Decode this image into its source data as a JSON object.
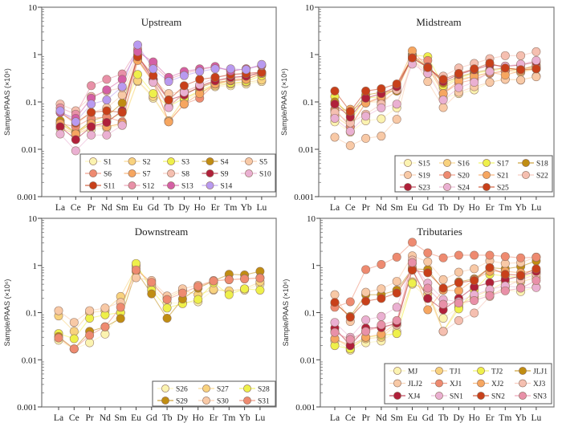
{
  "chart_data": [
    {
      "type": "line",
      "title": "Upstream",
      "ylabel": "Sample/PAAS (×10⁶)",
      "xlabel": "",
      "yscale": "log",
      "ylim": [
        0.001,
        10
      ],
      "yticks": [
        "10",
        "1",
        "0.1",
        "0.01",
        "0.001"
      ],
      "categories": [
        "La",
        "Ce",
        "Pr",
        "Nd",
        "Sm",
        "Eu",
        "Gd",
        "Tb",
        "Dy",
        "Ho",
        "Er",
        "Tm",
        "Yb",
        "Lu"
      ],
      "legend_position": "bottom-right",
      "legend_columns": 5,
      "series": [
        {
          "name": "S1",
          "color": "#fbf3b0",
          "values": [
            0.027,
            0.022,
            0.026,
            0.028,
            0.033,
            0.27,
            0.12,
            0.04,
            0.11,
            0.15,
            0.21,
            0.22,
            0.24,
            0.27
          ]
        },
        {
          "name": "S2",
          "color": "#f8d27e",
          "values": [
            0.03,
            0.02,
            0.03,
            0.03,
            0.035,
            0.28,
            0.13,
            0.04,
            0.12,
            0.16,
            0.22,
            0.24,
            0.26,
            0.29
          ]
        },
        {
          "name": "S3",
          "color": "#eef04a",
          "values": [
            0.035,
            0.023,
            0.035,
            0.04,
            0.06,
            0.38,
            0.15,
            0.08,
            0.12,
            0.17,
            0.24,
            0.25,
            0.27,
            0.36
          ]
        },
        {
          "name": "S4",
          "color": "#c08d12",
          "values": [
            0.04,
            0.022,
            0.04,
            0.05,
            0.095,
            0.8,
            0.27,
            0.08,
            0.15,
            0.2,
            0.26,
            0.28,
            0.3,
            0.4
          ]
        },
        {
          "name": "S5",
          "color": "#f8c9a6",
          "values": [
            0.06,
            0.033,
            0.06,
            0.075,
            0.14,
            0.9,
            0.3,
            0.15,
            0.17,
            0.22,
            0.28,
            0.3,
            0.33,
            0.42
          ]
        },
        {
          "name": "S6",
          "color": "#ee8a70",
          "values": [
            0.035,
            0.03,
            0.045,
            0.048,
            0.038,
            0.8,
            0.28,
            0.038,
            0.09,
            0.12,
            0.24,
            0.28,
            0.3,
            0.4
          ]
        },
        {
          "name": "S7",
          "color": "#f6a660",
          "values": [
            0.035,
            0.021,
            0.035,
            0.03,
            0.035,
            0.75,
            0.26,
            0.038,
            0.09,
            0.15,
            0.24,
            0.29,
            0.3,
            0.4
          ]
        },
        {
          "name": "S8",
          "color": "#f5bfb0",
          "values": [
            0.09,
            0.065,
            0.13,
            0.17,
            0.2,
            1.0,
            0.3,
            0.08,
            0.16,
            0.22,
            0.28,
            0.32,
            0.35,
            0.42
          ]
        },
        {
          "name": "S9",
          "color": "#b0203a",
          "values": [
            0.03,
            0.016,
            0.03,
            0.037,
            0.065,
            0.95,
            0.3,
            0.11,
            0.14,
            0.21,
            0.28,
            0.33,
            0.35,
            0.42
          ]
        },
        {
          "name": "S10",
          "color": "#eab0d2",
          "values": [
            0.021,
            0.0093,
            0.02,
            0.02,
            0.032,
            0.95,
            0.26,
            0.076,
            0.16,
            0.23,
            0.33,
            0.37,
            0.4,
            0.42
          ]
        },
        {
          "name": "S11",
          "color": "#c8401a",
          "values": [
            0.06,
            0.036,
            0.06,
            0.065,
            0.06,
            0.9,
            0.36,
            0.11,
            0.22,
            0.3,
            0.33,
            0.38,
            0.4,
            0.42
          ]
        },
        {
          "name": "S12",
          "color": "#e890a8",
          "values": [
            0.075,
            0.055,
            0.22,
            0.3,
            0.39,
            1.3,
            0.6,
            0.3,
            0.4,
            0.48,
            0.55,
            0.45,
            0.5,
            0.58
          ]
        },
        {
          "name": "S13",
          "color": "#d45fa5",
          "values": [
            0.06,
            0.045,
            0.12,
            0.18,
            0.3,
            1.15,
            0.7,
            0.33,
            0.44,
            0.5,
            0.56,
            0.45,
            0.5,
            0.6
          ]
        },
        {
          "name": "S14",
          "color": "#b89af0",
          "values": [
            0.065,
            0.038,
            0.09,
            0.11,
            0.21,
            1.6,
            0.5,
            0.27,
            0.36,
            0.44,
            0.5,
            0.5,
            0.48,
            0.62
          ]
        }
      ]
    },
    {
      "type": "line",
      "title": "Midstream",
      "ylabel": "Sample/PAAS (×10⁶)",
      "xlabel": "",
      "yscale": "log",
      "ylim": [
        0.001,
        10
      ],
      "yticks": [
        "10",
        "1",
        "0.1",
        "0.01",
        "0.001"
      ],
      "categories": [
        "La",
        "Ce",
        "Pr",
        "Nd",
        "Sm",
        "Eu",
        "Gd",
        "Tb",
        "Dy",
        "Ho",
        "Er",
        "Tm",
        "Yb",
        "Lu"
      ],
      "legend_position": "bottom-right",
      "legend_columns": 4,
      "series": [
        {
          "name": "S15",
          "color": "#fbf3b0",
          "values": [
            0.038,
            0.023,
            0.04,
            0.044,
            0.075,
            0.85,
            0.45,
            0.12,
            0.15,
            0.18,
            0.26,
            0.3,
            0.29,
            0.35
          ]
        },
        {
          "name": "S16",
          "color": "#f8d27e",
          "values": [
            0.05,
            0.03,
            0.1,
            0.1,
            0.17,
            1.0,
            0.5,
            0.2,
            0.3,
            0.35,
            0.4,
            0.45,
            0.42,
            0.5
          ]
        },
        {
          "name": "S17",
          "color": "#eef04a",
          "values": [
            0.13,
            0.04,
            0.12,
            0.13,
            0.19,
            1.0,
            0.9,
            0.22,
            0.32,
            0.4,
            0.45,
            0.5,
            0.45,
            0.55
          ]
        },
        {
          "name": "S18",
          "color": "#c08d12",
          "values": [
            0.1,
            0.055,
            0.14,
            0.16,
            0.17,
            0.95,
            0.55,
            0.25,
            0.34,
            0.42,
            0.48,
            0.52,
            0.48,
            0.6
          ]
        },
        {
          "name": "S19",
          "color": "#f8c9a6",
          "values": [
            0.018,
            0.012,
            0.017,
            0.019,
            0.043,
            0.9,
            0.27,
            0.076,
            0.16,
            0.21,
            0.26,
            0.3,
            0.29,
            0.34
          ]
        },
        {
          "name": "S20",
          "color": "#ee8a70",
          "values": [
            0.07,
            0.03,
            0.095,
            0.12,
            0.2,
            0.85,
            0.75,
            0.15,
            0.25,
            0.3,
            0.4,
            0.45,
            0.5,
            0.55
          ]
        },
        {
          "name": "S21",
          "color": "#f6a660",
          "values": [
            0.065,
            0.07,
            0.095,
            0.13,
            0.22,
            1.2,
            0.55,
            0.15,
            0.28,
            0.35,
            0.42,
            0.37,
            0.45,
            0.5
          ]
        },
        {
          "name": "S22",
          "color": "#f5bfb0",
          "values": [
            0.06,
            0.036,
            0.055,
            0.09,
            0.18,
            0.8,
            0.4,
            0.35,
            0.52,
            0.65,
            0.82,
            0.95,
            0.95,
            1.15
          ]
        },
        {
          "name": "S23",
          "color": "#b0203a",
          "values": [
            0.09,
            0.048,
            0.12,
            0.15,
            0.21,
            0.85,
            0.55,
            0.27,
            0.38,
            0.48,
            0.6,
            0.57,
            0.6,
            0.7
          ]
        },
        {
          "name": "S24",
          "color": "#eab0d2",
          "values": [
            0.045,
            0.024,
            0.05,
            0.075,
            0.09,
            0.63,
            0.4,
            0.11,
            0.2,
            0.26,
            0.44,
            0.57,
            0.63,
            0.75
          ]
        },
        {
          "name": "S25",
          "color": "#c8401a",
          "values": [
            0.17,
            0.063,
            0.17,
            0.19,
            0.24,
            0.85,
            0.53,
            0.3,
            0.4,
            0.5,
            0.66,
            0.52,
            0.48,
            0.5
          ]
        }
      ]
    },
    {
      "type": "line",
      "title": "Downstream",
      "ylabel": "Sample/PAAS (×10⁶)",
      "xlabel": "",
      "yscale": "log",
      "ylim": [
        0.001,
        10
      ],
      "yticks": [
        "10",
        "1",
        "0.1",
        "0.01",
        "0.001"
      ],
      "categories": [
        "La",
        "Ce",
        "Pr",
        "Nd",
        "Sm",
        "Eu",
        "Gd",
        "Tb",
        "Dy",
        "Ho",
        "Er",
        "Tm",
        "Yb",
        "Lu"
      ],
      "legend_position": "bottom-right",
      "legend_columns": 3,
      "series": [
        {
          "name": "S26",
          "color": "#fbf3b0",
          "values": [
            0.026,
            0.017,
            0.023,
            0.035,
            0.1,
            1.0,
            0.35,
            0.16,
            0.16,
            0.17,
            0.3,
            0.28,
            0.3,
            0.4
          ]
        },
        {
          "name": "S27",
          "color": "#f8d27e",
          "values": [
            0.085,
            0.04,
            0.1,
            0.11,
            0.22,
            0.9,
            0.4,
            0.2,
            0.3,
            0.24,
            0.31,
            0.29,
            0.32,
            0.45
          ]
        },
        {
          "name": "S28",
          "color": "#eef04a",
          "values": [
            0.036,
            0.028,
            0.076,
            0.09,
            0.1,
            1.1,
            0.3,
            0.125,
            0.155,
            0.19,
            0.43,
            0.24,
            0.32,
            0.3
          ]
        },
        {
          "name": "S29",
          "color": "#c08d12",
          "values": [
            0.031,
            0.017,
            0.04,
            0.05,
            0.075,
            0.75,
            0.25,
            0.076,
            0.195,
            0.33,
            0.47,
            0.65,
            0.63,
            0.75
          ]
        },
        {
          "name": "S30",
          "color": "#f8c9a6",
          "values": [
            0.11,
            0.062,
            0.11,
            0.125,
            0.165,
            0.55,
            0.48,
            0.225,
            0.32,
            0.38,
            0.48,
            0.5,
            0.52,
            0.55
          ]
        },
        {
          "name": "S31",
          "color": "#ee8a70",
          "values": [
            0.029,
            0.017,
            0.033,
            0.05,
            0.13,
            0.8,
            0.44,
            0.19,
            0.26,
            0.36,
            0.47,
            0.5,
            0.52,
            0.54
          ]
        }
      ]
    },
    {
      "type": "line",
      "title": "Tributaries",
      "ylabel": "Sample/PAAS (×10⁶)",
      "xlabel": "",
      "yscale": "log",
      "ylim": [
        0.001,
        10
      ],
      "yticks": [
        "10",
        "1",
        "0.1",
        "0.01",
        "0.001"
      ],
      "categories": [
        "La",
        "Ce",
        "Pr",
        "Nd",
        "Sm",
        "Eu",
        "Gd",
        "Tb",
        "Dy",
        "Ho",
        "Er",
        "Tm",
        "Yb",
        "Lu"
      ],
      "legend_position": "bottom-right",
      "legend_columns": 4,
      "series": [
        {
          "name": "MJ",
          "color": "#fbf3b0",
          "values": [
            0.025,
            0.016,
            0.023,
            0.025,
            0.04,
            0.4,
            0.2,
            0.076,
            0.13,
            0.2,
            0.25,
            0.3,
            0.28,
            0.35
          ]
        },
        {
          "name": "TJ1",
          "color": "#f8d27e",
          "values": [
            0.028,
            0.018,
            0.028,
            0.03,
            0.055,
            0.45,
            0.25,
            0.04,
            0.14,
            0.22,
            0.3,
            0.45,
            0.45,
            0.55
          ]
        },
        {
          "name": "TJ2",
          "color": "#eef04a",
          "values": [
            0.02,
            0.017,
            0.03,
            0.033,
            0.036,
            0.42,
            0.3,
            0.04,
            0.12,
            0.3,
            0.65,
            0.6,
            0.55,
            0.7
          ]
        },
        {
          "name": "JLJ1",
          "color": "#c08d12",
          "values": [
            0.16,
            0.083,
            0.24,
            0.24,
            0.3,
            0.85,
            0.82,
            0.3,
            0.45,
            0.52,
            0.9,
            0.85,
            0.95,
            1.25
          ]
        },
        {
          "name": "JLJ2",
          "color": "#f8c9a6",
          "values": [
            0.24,
            0.065,
            0.27,
            0.32,
            0.46,
            1.6,
            1.2,
            0.5,
            0.72,
            0.85,
            1.25,
            1.1,
            1.15,
            1.5
          ]
        },
        {
          "name": "XJ1",
          "color": "#ee8a70",
          "values": [
            0.13,
            0.17,
            0.82,
            1.05,
            1.5,
            3.1,
            1.85,
            1.45,
            1.65,
            1.65,
            1.65,
            1.55,
            1.45,
            1.5
          ]
        },
        {
          "name": "XJ2",
          "color": "#f6a660",
          "values": [
            0.028,
            0.02,
            0.03,
            0.035,
            0.06,
            0.9,
            0.115,
            0.3,
            0.29,
            0.5,
            0.75,
            0.75,
            0.7,
            0.8
          ]
        },
        {
          "name": "XJ3",
          "color": "#f5bfb0",
          "values": [
            0.04,
            0.024,
            0.04,
            0.05,
            0.055,
            1.3,
            0.3,
            0.04,
            0.068,
            0.098,
            0.22,
            0.35,
            0.5,
            0.65
          ]
        },
        {
          "name": "XJ4",
          "color": "#b0203a",
          "values": [
            0.047,
            0.02,
            0.047,
            0.048,
            0.06,
            0.8,
            0.2,
            0.115,
            0.2,
            0.35,
            0.43,
            0.5,
            0.6,
            0.75
          ]
        },
        {
          "name": "SN1",
          "color": "#eab0d2",
          "values": [
            0.062,
            0.03,
            0.07,
            0.083,
            0.13,
            1.1,
            0.42,
            0.19,
            0.17,
            0.24,
            0.31,
            0.37,
            0.34,
            0.34
          ]
        },
        {
          "name": "SN2",
          "color": "#c8401a",
          "values": [
            0.165,
            0.08,
            0.175,
            0.2,
            0.26,
            0.8,
            0.7,
            0.33,
            0.43,
            0.48,
            0.9,
            0.65,
            0.62,
            0.85
          ]
        },
        {
          "name": "SN3",
          "color": "#e890a8",
          "values": [
            0.038,
            0.027,
            0.04,
            0.055,
            0.068,
            1.15,
            0.33,
            0.15,
            0.16,
            0.18,
            0.23,
            0.29,
            0.33,
            0.48
          ]
        }
      ]
    }
  ]
}
